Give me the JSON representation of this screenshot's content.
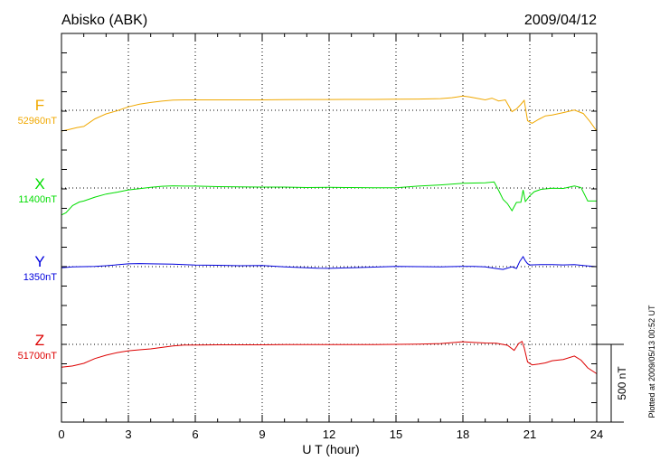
{
  "header": {
    "station": "Abisko (ABK)",
    "date": "2009/04/12"
  },
  "footer": {
    "plotted_note": "Plotted at 2009/05/13 00:52 UT"
  },
  "scale_bar": {
    "label": "500 nT",
    "value_nT": 500
  },
  "colors": {
    "F": "#f0a800",
    "X": "#00dd00",
    "Y": "#0000dd",
    "Z": "#dd0000",
    "axis": "#000000"
  },
  "chart_data": {
    "type": "line",
    "title": "",
    "xlabel": "U T (hour)",
    "ylabel": "",
    "xlim": [
      0,
      24
    ],
    "x_ticks": [
      0,
      3,
      6,
      9,
      12,
      15,
      18,
      21,
      24
    ],
    "x_tick_labels": [
      "0",
      "3",
      "6",
      "9",
      "12",
      "15",
      "18",
      "21",
      "24"
    ],
    "grid": "dotted at 3-hour marks and channel baselines",
    "series": [
      {
        "key": "F",
        "name": "F",
        "baseline_label": "52960nT",
        "baseline_nT": 52960,
        "x": [
          0,
          0.3,
          0.7,
          1.0,
          1.5,
          2.0,
          2.5,
          3.0,
          3.5,
          4.0,
          4.5,
          5.0,
          5.5,
          6.0,
          7,
          8,
          9,
          10,
          11,
          12,
          13,
          14,
          15,
          16,
          17,
          17.5,
          18.0,
          18.3,
          18.6,
          19.0,
          19.3,
          19.6,
          19.9,
          20.2,
          20.4,
          20.6,
          20.75,
          20.9,
          21.1,
          21.4,
          21.7,
          22.0,
          22.5,
          23.0,
          23.4,
          23.7,
          24.0
        ],
        "values": [
          52826,
          52835,
          52849,
          52856,
          52905,
          52937,
          52957,
          52982,
          52999,
          53010,
          53019,
          53025,
          53027,
          53027,
          53027,
          53027,
          53027,
          53028,
          53029,
          53029,
          53030,
          53030,
          53031,
          53032,
          53035,
          53041,
          53051,
          53046,
          53038,
          53027,
          53038,
          53020,
          53027,
          52951,
          52968,
          52998,
          53024,
          52893,
          52876,
          52902,
          52924,
          52929,
          52945,
          52961,
          52939,
          52887,
          52826
        ]
      },
      {
        "key": "X",
        "name": "X",
        "baseline_label": "11400nT",
        "baseline_nT": 11400,
        "x": [
          0,
          0.2,
          0.5,
          0.8,
          1.0,
          1.5,
          2.0,
          2.5,
          3.0,
          3.5,
          4.0,
          4.5,
          5.0,
          5.5,
          6.0,
          7,
          8,
          9,
          10,
          11,
          12,
          13,
          14,
          15,
          16,
          17,
          18,
          18.5,
          19.0,
          19.4,
          19.6,
          19.8,
          20.0,
          20.2,
          20.4,
          20.6,
          20.7,
          20.8,
          21.0,
          21.2,
          21.5,
          22.0,
          22.5,
          23.0,
          23.3,
          23.6,
          24.0
        ],
        "values": [
          11227,
          11240,
          11287,
          11310,
          11316,
          11341,
          11361,
          11373,
          11388,
          11396,
          11404,
          11411,
          11414,
          11412,
          11412,
          11409,
          11407,
          11406,
          11406,
          11403,
          11404,
          11403,
          11402,
          11402,
          11412,
          11420,
          11430,
          11432,
          11433,
          11439,
          11385,
          11327,
          11299,
          11254,
          11307,
          11308,
          11387,
          11313,
          11350,
          11376,
          11391,
          11398,
          11397,
          11413,
          11403,
          11316,
          11316
        ]
      },
      {
        "key": "Y",
        "name": "Y",
        "baseline_label": "1350nT",
        "baseline_nT": 1350,
        "x": [
          0,
          0.5,
          1.0,
          1.5,
          2.0,
          3.0,
          3.5,
          4.0,
          5,
          6,
          7,
          8,
          9,
          10,
          11,
          11.5,
          12,
          13,
          14,
          15,
          16,
          17,
          18,
          18.5,
          19.0,
          19.5,
          19.8,
          20.2,
          20.4,
          20.55,
          20.7,
          20.8,
          20.9,
          21.0,
          21.5,
          22.0,
          22.5,
          23.0,
          23.5,
          24.0
        ],
        "values": [
          1343,
          1349,
          1350,
          1352,
          1356,
          1368,
          1370,
          1368,
          1366,
          1360,
          1359,
          1356,
          1357,
          1349,
          1343,
          1340,
          1339,
          1343,
          1347,
          1352,
          1350,
          1349,
          1352,
          1352,
          1348,
          1338,
          1332,
          1349,
          1338,
          1384,
          1414,
          1387,
          1369,
          1361,
          1363,
          1363,
          1361,
          1363,
          1356,
          1350
        ]
      },
      {
        "key": "Z",
        "name": "Z",
        "baseline_label": "51700nT",
        "baseline_nT": 51700,
        "x": [
          0,
          0.5,
          1.0,
          1.5,
          2.0,
          2.5,
          3.0,
          3.5,
          4.0,
          4.5,
          5.0,
          5.5,
          6.0,
          7,
          8,
          9,
          10,
          11,
          12,
          13,
          14,
          15,
          16,
          17,
          18,
          18.5,
          19.0,
          19.5,
          20.0,
          20.3,
          20.5,
          20.65,
          20.75,
          20.9,
          21.1,
          21.4,
          21.7,
          22.0,
          22.5,
          23.0,
          23.3,
          23.6,
          24.0
        ],
        "values": [
          51553,
          51561,
          51578,
          51609,
          51630,
          51647,
          51659,
          51665,
          51671,
          51680,
          51690,
          51696,
          51696,
          51697,
          51697,
          51697,
          51699,
          51699,
          51699,
          51699,
          51699,
          51700,
          51702,
          51705,
          51717,
          51712,
          51709,
          51707,
          51694,
          51661,
          51706,
          51719,
          51678,
          51587,
          51568,
          51574,
          51581,
          51595,
          51603,
          51625,
          51598,
          51549,
          51511
        ]
      }
    ]
  }
}
